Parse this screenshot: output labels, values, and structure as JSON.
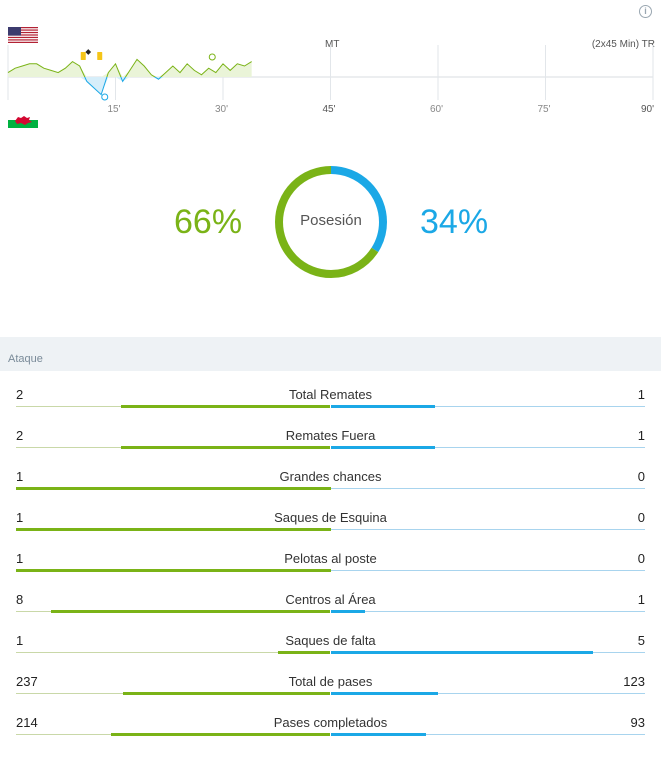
{
  "header": {
    "mt_label": "MT",
    "duration_label": "(2x45 Min) TR"
  },
  "teams": {
    "home_flag": "us-flag-icon",
    "away_flag": "wales-flag-icon"
  },
  "timeline": {
    "ticks": [
      "15'",
      "30'",
      "45'",
      "60'",
      "75'",
      "90'"
    ],
    "minute_max": 90,
    "events": [
      {
        "type": "yellow-card",
        "team": "home",
        "minute": 10.5
      },
      {
        "type": "ball-icon",
        "team": "home",
        "minute": 11.2
      },
      {
        "type": "yellow-card",
        "team": "home",
        "minute": 12.8
      },
      {
        "type": "substitution-icon",
        "team": "home",
        "minute": 28.5
      },
      {
        "type": "substitution-icon",
        "team": "away",
        "minute": 13.5
      }
    ],
    "momentum": [
      [
        0,
        2
      ],
      [
        1,
        4
      ],
      [
        2,
        5
      ],
      [
        3,
        6
      ],
      [
        4,
        6
      ],
      [
        5,
        4
      ],
      [
        6,
        3
      ],
      [
        7,
        2
      ],
      [
        8,
        4
      ],
      [
        9,
        7
      ],
      [
        10,
        5
      ],
      [
        11,
        -2
      ],
      [
        12,
        -5
      ],
      [
        13,
        -8
      ],
      [
        14,
        2
      ],
      [
        15,
        6
      ],
      [
        16,
        -2
      ],
      [
        17,
        3
      ],
      [
        18,
        8
      ],
      [
        19,
        5
      ],
      [
        20,
        1
      ],
      [
        21,
        -1
      ],
      [
        22,
        2
      ],
      [
        23,
        5
      ],
      [
        24,
        2
      ],
      [
        25,
        6
      ],
      [
        26,
        3
      ],
      [
        27,
        1
      ],
      [
        28,
        4
      ],
      [
        29,
        2
      ],
      [
        30,
        6
      ],
      [
        31,
        3
      ],
      [
        32,
        6
      ],
      [
        33,
        5
      ],
      [
        34,
        7
      ]
    ],
    "colors": {
      "home": "#7ab317",
      "away": "#1ba8e6"
    }
  },
  "possession": {
    "home": "66%",
    "away": "34%",
    "home_value": 66,
    "away_value": 34,
    "label": "Posesión"
  },
  "section": {
    "title": "Ataque"
  },
  "stats": [
    {
      "name": "Total Remates",
      "home": "2",
      "away": "1",
      "home_val": 2,
      "away_val": 1
    },
    {
      "name": "Remates Fuera",
      "home": "2",
      "away": "1",
      "home_val": 2,
      "away_val": 1
    },
    {
      "name": "Grandes chances",
      "home": "1",
      "away": "0",
      "home_val": 1,
      "away_val": 0
    },
    {
      "name": "Saques de Esquina",
      "home": "1",
      "away": "0",
      "home_val": 1,
      "away_val": 0
    },
    {
      "name": "Pelotas al poste",
      "home": "1",
      "away": "0",
      "home_val": 1,
      "away_val": 0
    },
    {
      "name": "Centros al Área",
      "home": "8",
      "away": "1",
      "home_val": 8,
      "away_val": 1
    },
    {
      "name": "Saques de falta",
      "home": "1",
      "away": "5",
      "home_val": 1,
      "away_val": 5
    },
    {
      "name": "Total de pases",
      "home": "237",
      "away": "123",
      "home_val": 237,
      "away_val": 123
    },
    {
      "name": "Pases completados",
      "home": "214",
      "away": "93",
      "home_val": 214,
      "away_val": 93
    }
  ]
}
